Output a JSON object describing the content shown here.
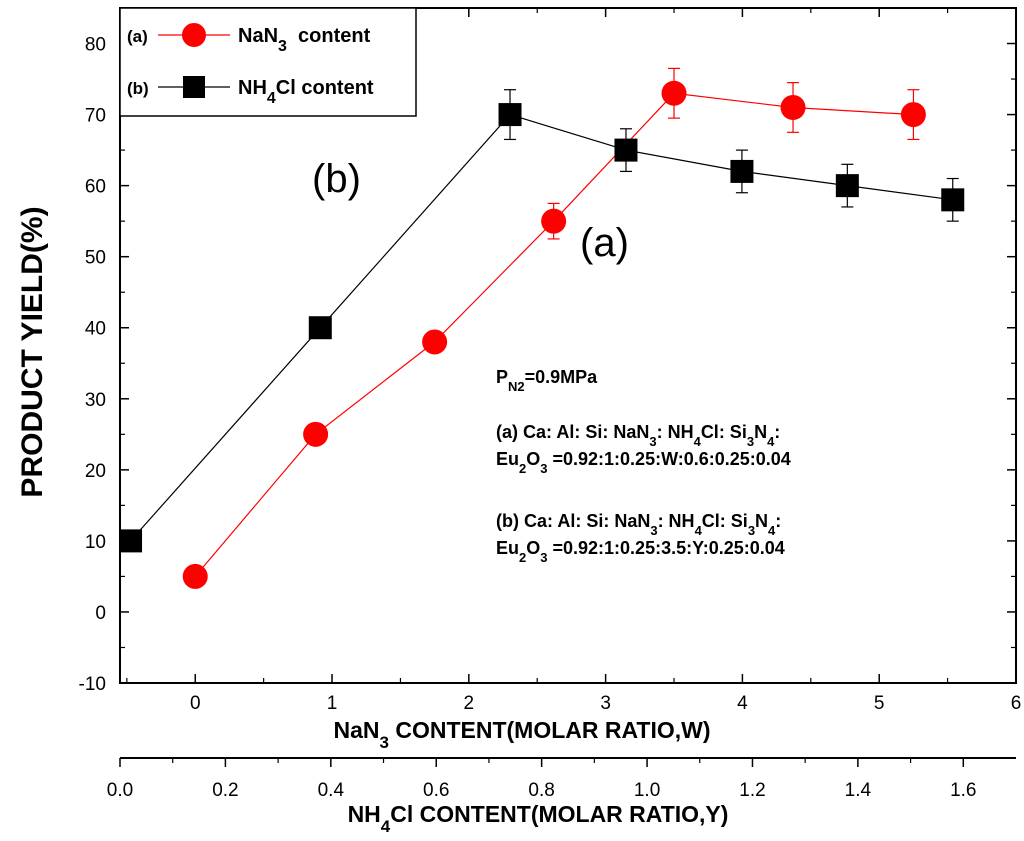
{
  "chart_data": {
    "type": "line",
    "ylabel": "PRODUCT YIELD(%)",
    "ylim": [
      -10,
      85
    ],
    "y_ticks": [
      "-10",
      "0",
      "10",
      "20",
      "30",
      "40",
      "50",
      "60",
      "70",
      "80"
    ],
    "x_axis_bottom": {
      "label_main": "NaN",
      "label_sub": "3",
      "label_rest": " CONTENT(MOLAR RATIO,W)",
      "xlim": [
        -0.55,
        6
      ],
      "ticks": [
        "0",
        "1",
        "2",
        "3",
        "4",
        "5",
        "6"
      ]
    },
    "x_axis_second": {
      "label_main": "NH",
      "label_sub": "4",
      "label_rest": "Cl CONTENT(MOLAR RATIO,Y)",
      "xlim": [
        0,
        1.7
      ],
      "ticks": [
        "0.0",
        "0.2",
        "0.4",
        "0.6",
        "0.8",
        "1.0",
        "1.2",
        "1.4",
        "1.6"
      ]
    },
    "series": [
      {
        "tag": "(a)",
        "name_main": "NaN",
        "name_sub": "3",
        "name_rest": "  content",
        "color": "#ff0000",
        "marker": "circle",
        "axis": "W",
        "x": [
          0,
          0.88,
          1.75,
          2.62,
          3.5,
          4.37,
          5.25
        ],
        "y": [
          5,
          25,
          38,
          55,
          73,
          71,
          70
        ],
        "err": [
          0,
          0,
          0,
          2.5,
          3.5,
          3.5,
          3.5
        ]
      },
      {
        "tag": "(b)",
        "name_main": "NH",
        "name_sub": "4",
        "name_rest": "Cl content",
        "color": "#000000",
        "marker": "square",
        "axis": "Y",
        "x": [
          0.02,
          0.38,
          0.74,
          0.96,
          1.18,
          1.38,
          1.58
        ],
        "y": [
          10,
          40,
          70,
          65,
          62,
          60,
          58
        ],
        "err": [
          0,
          1.5,
          3.5,
          3,
          3,
          3,
          3
        ]
      }
    ],
    "curve_labels": [
      "(b)",
      "(a)"
    ],
    "annotations": {
      "pressure": "P",
      "pressure_sub": "N2",
      "pressure_rest": "=0.9MPa",
      "a_line1": "(a) Ca: Al: Si: NaN",
      "a_line1_sub1": "3",
      "a_line1_mid": ": NH",
      "a_line1_sub2": "4",
      "a_line1_mid2": "Cl: Si",
      "a_line1_sub3": "3",
      "a_line1_mid3": "N",
      "a_line1_sub4": "4",
      "a_line1_end": ":",
      "a_line2": "Eu",
      "a_line2_sub1": "2",
      "a_line2_mid": "O",
      "a_line2_sub2": "3",
      "a_line2_end": " =0.92:1:0.25:W:0.6:0.25:0.04",
      "b_line1": "(b) Ca: Al: Si: NaN",
      "b_line2_end": " =0.92:1:0.25:3.5:Y:0.25:0.04"
    }
  }
}
